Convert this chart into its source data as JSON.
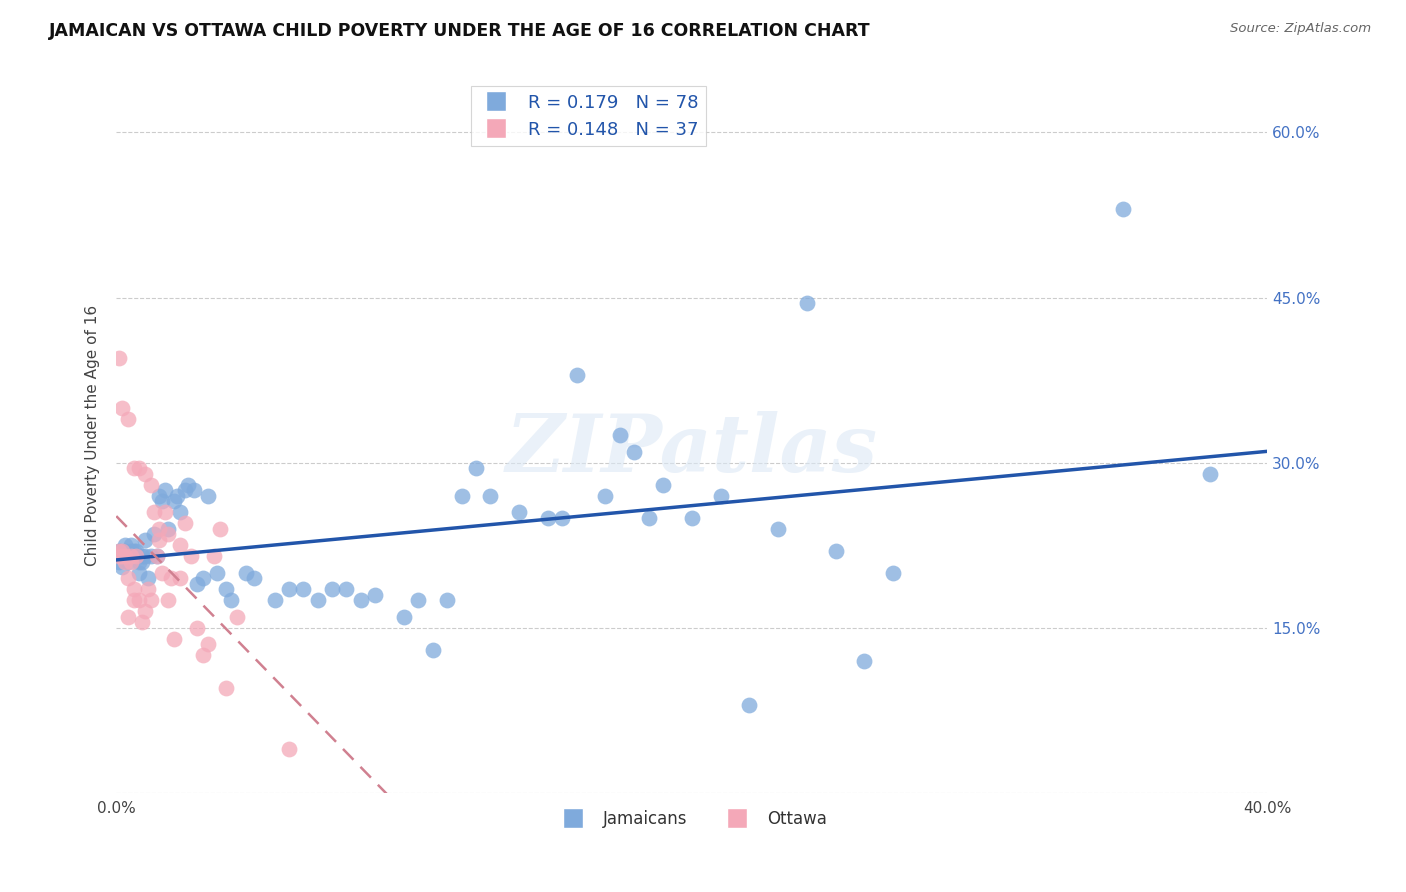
{
  "title": "JAMAICAN VS OTTAWA CHILD POVERTY UNDER THE AGE OF 16 CORRELATION CHART",
  "source": "Source: ZipAtlas.com",
  "ylabel": "Child Poverty Under the Age of 16",
  "xlim": [
    0.0,
    0.4
  ],
  "ylim": [
    0.0,
    0.65
  ],
  "xticks": [
    0.0,
    0.05,
    0.1,
    0.15,
    0.2,
    0.25,
    0.3,
    0.35,
    0.4
  ],
  "yticks": [
    0.0,
    0.15,
    0.3,
    0.45,
    0.6
  ],
  "blue_color": "#7faadc",
  "pink_color": "#f4a8b8",
  "line_blue": "#2255aa",
  "line_pink": "#d08090",
  "legend_R_blue": "0.179",
  "legend_N_blue": "78",
  "legend_R_pink": "0.148",
  "legend_N_pink": "37",
  "legend_label_blue": "Jamaicans",
  "legend_label_pink": "Ottawa",
  "watermark": "ZIPatlas",
  "jamaicans_x": [
    0.001,
    0.001,
    0.002,
    0.002,
    0.003,
    0.003,
    0.003,
    0.004,
    0.004,
    0.005,
    0.005,
    0.005,
    0.006,
    0.006,
    0.007,
    0.007,
    0.008,
    0.008,
    0.009,
    0.009,
    0.01,
    0.01,
    0.011,
    0.012,
    0.013,
    0.014,
    0.015,
    0.016,
    0.017,
    0.018,
    0.02,
    0.021,
    0.022,
    0.024,
    0.025,
    0.027,
    0.028,
    0.03,
    0.032,
    0.035,
    0.038,
    0.04,
    0.045,
    0.048,
    0.055,
    0.06,
    0.065,
    0.07,
    0.075,
    0.08,
    0.085,
    0.09,
    0.1,
    0.105,
    0.11,
    0.115,
    0.12,
    0.125,
    0.13,
    0.14,
    0.15,
    0.155,
    0.16,
    0.17,
    0.175,
    0.18,
    0.185,
    0.19,
    0.2,
    0.21,
    0.22,
    0.23,
    0.24,
    0.25,
    0.26,
    0.27,
    0.35,
    0.38
  ],
  "jamaicans_y": [
    0.22,
    0.21,
    0.215,
    0.205,
    0.215,
    0.22,
    0.225,
    0.215,
    0.21,
    0.22,
    0.215,
    0.225,
    0.22,
    0.215,
    0.22,
    0.215,
    0.2,
    0.21,
    0.21,
    0.215,
    0.23,
    0.215,
    0.195,
    0.215,
    0.235,
    0.215,
    0.27,
    0.265,
    0.275,
    0.24,
    0.265,
    0.27,
    0.255,
    0.275,
    0.28,
    0.275,
    0.19,
    0.195,
    0.27,
    0.2,
    0.185,
    0.175,
    0.2,
    0.195,
    0.175,
    0.185,
    0.185,
    0.175,
    0.185,
    0.185,
    0.175,
    0.18,
    0.16,
    0.175,
    0.13,
    0.175,
    0.27,
    0.295,
    0.27,
    0.255,
    0.25,
    0.25,
    0.38,
    0.27,
    0.325,
    0.31,
    0.25,
    0.28,
    0.25,
    0.27,
    0.08,
    0.24,
    0.445,
    0.22,
    0.12,
    0.2,
    0.53,
    0.29
  ],
  "ottawa_x": [
    0.001,
    0.001,
    0.002,
    0.002,
    0.003,
    0.003,
    0.004,
    0.004,
    0.005,
    0.005,
    0.006,
    0.006,
    0.007,
    0.008,
    0.009,
    0.01,
    0.011,
    0.012,
    0.013,
    0.014,
    0.015,
    0.016,
    0.017,
    0.018,
    0.019,
    0.02,
    0.022,
    0.024,
    0.026,
    0.028,
    0.03,
    0.032,
    0.034,
    0.036,
    0.038,
    0.042,
    0.06
  ],
  "ottawa_y": [
    0.22,
    0.215,
    0.22,
    0.215,
    0.215,
    0.21,
    0.16,
    0.195,
    0.215,
    0.21,
    0.185,
    0.175,
    0.215,
    0.175,
    0.155,
    0.165,
    0.185,
    0.175,
    0.255,
    0.215,
    0.23,
    0.2,
    0.255,
    0.175,
    0.195,
    0.14,
    0.225,
    0.245,
    0.215,
    0.15,
    0.125,
    0.135,
    0.215,
    0.24,
    0.095,
    0.16,
    0.04
  ],
  "ottawa_extra_x": [
    0.001,
    0.002,
    0.004,
    0.006,
    0.008,
    0.01,
    0.012,
    0.015,
    0.018,
    0.022
  ],
  "ottawa_extra_y": [
    0.395,
    0.35,
    0.34,
    0.295,
    0.295,
    0.29,
    0.28,
    0.24,
    0.235,
    0.195
  ]
}
